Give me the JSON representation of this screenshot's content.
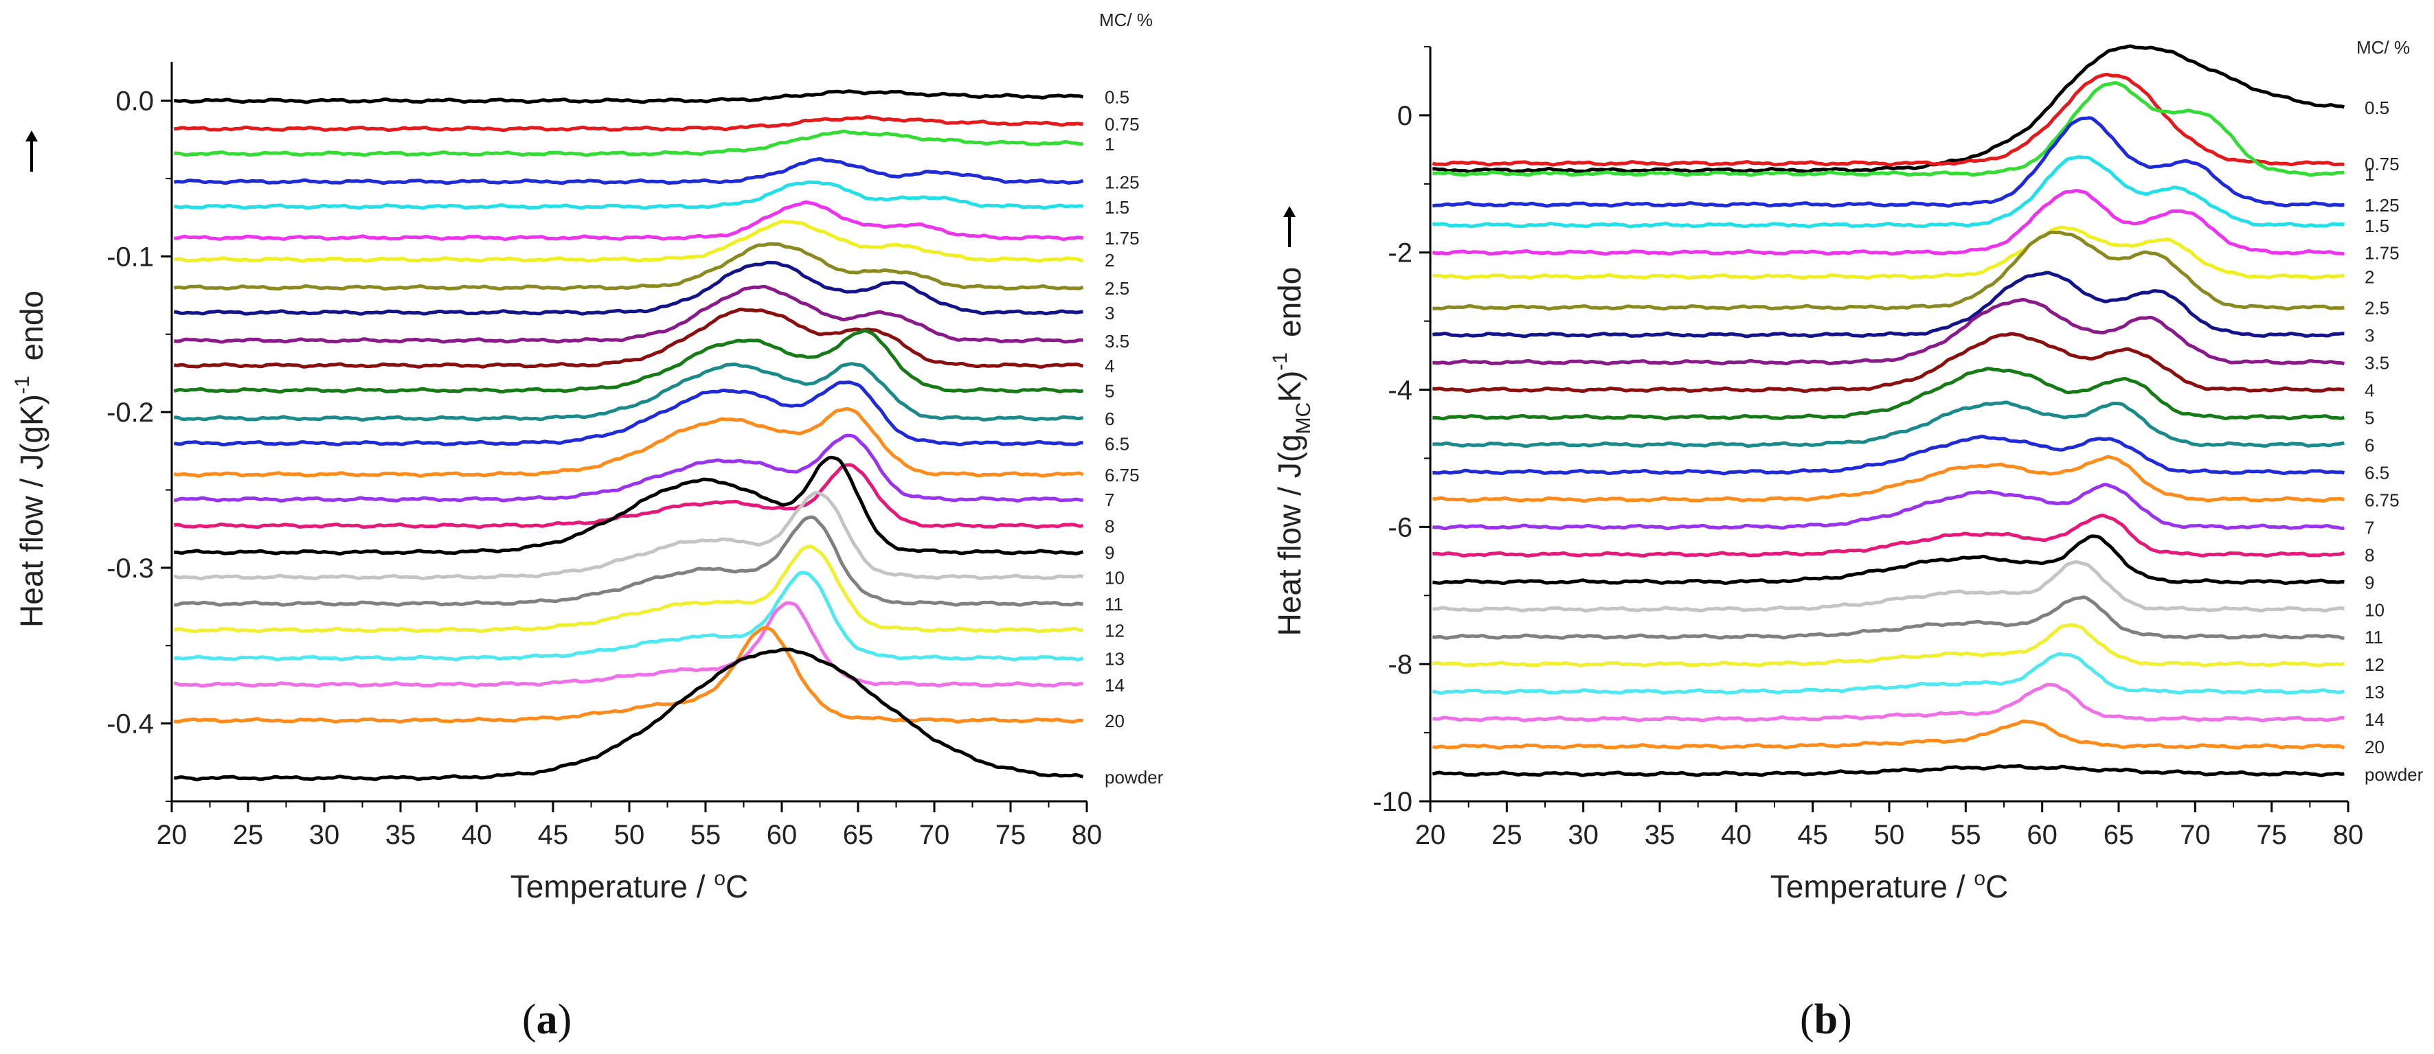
{
  "figure": {
    "panels": [
      "a",
      "b"
    ]
  },
  "chart_data": [
    {
      "type": "line",
      "panel_label": "a",
      "title": "",
      "xlabel": "Temperature / °C",
      "ylabel": "Heat flow / J(gK)-1  endo",
      "ylabel_parts": {
        "main": "Heat flow / J(gK)",
        "sup": "-1",
        "endo": "endo"
      },
      "xlabel_parts": {
        "main": "Temperature / ",
        "sup": "o",
        "unit": "C"
      },
      "xlim": [
        20,
        80
      ],
      "ylim": [
        -0.45,
        0.025
      ],
      "xticks": [
        20,
        25,
        30,
        35,
        40,
        45,
        50,
        55,
        60,
        65,
        70,
        75,
        80
      ],
      "yticks": [
        0.0,
        -0.1,
        -0.2,
        -0.3,
        -0.4
      ],
      "ytick_labels": [
        "0.0",
        "-0.1",
        "-0.2",
        "-0.3",
        "-0.4"
      ],
      "legend_title": "MC/ %",
      "grid": false,
      "series": [
        {
          "name": "0.5",
          "color": "#000000",
          "baseline": 0.0,
          "peaks": [
            [
              64.5,
              0.005,
              3.0,
              "step"
            ]
          ]
        },
        {
          "name": "0.75",
          "color": "#e41a1c",
          "baseline": -0.018,
          "peaks": [
            [
              64.5,
              0.006,
              3.0,
              "step"
            ]
          ]
        },
        {
          "name": "1",
          "color": "#33dd33",
          "baseline": -0.034,
          "peaks": [
            [
              64.0,
              0.012,
              3.0,
              "step"
            ]
          ]
        },
        {
          "name": "1.25",
          "color": "#1f2bd6",
          "baseline": -0.052,
          "peaks": [
            [
              62.8,
              0.014,
              2.4
            ],
            [
              70.5,
              0.006,
              2.0
            ]
          ]
        },
        {
          "name": "1.5",
          "color": "#22e0e8",
          "baseline": -0.068,
          "peaks": [
            [
              62.0,
              0.016,
              2.4
            ],
            [
              69.5,
              0.006,
              2.0
            ]
          ]
        },
        {
          "name": "1.75",
          "color": "#ee33ee",
          "baseline": -0.088,
          "peaks": [
            [
              61.5,
              0.022,
              2.4
            ],
            [
              68.5,
              0.008,
              2.0
            ]
          ]
        },
        {
          "name": "2",
          "color": "#f0f020",
          "baseline": -0.102,
          "peaks": [
            [
              60.5,
              0.024,
              2.8
            ],
            [
              68.0,
              0.008,
              2.0
            ]
          ]
        },
        {
          "name": "2.5",
          "color": "#8a8a20",
          "baseline": -0.12,
          "peaks": [
            [
              59.5,
              0.028,
              3.0
            ],
            [
              67.5,
              0.01,
              2.0
            ]
          ]
        },
        {
          "name": "3",
          "color": "#14148a",
          "baseline": -0.136,
          "peaks": [
            [
              59.0,
              0.032,
              3.2
            ],
            [
              67.5,
              0.018,
              2.0
            ]
          ]
        },
        {
          "name": "3.5",
          "color": "#8a1a8a",
          "baseline": -0.154,
          "peaks": [
            [
              58.5,
              0.034,
              3.4
            ],
            [
              67.0,
              0.016,
              2.0
            ]
          ]
        },
        {
          "name": "4",
          "color": "#8a1010",
          "baseline": -0.17,
          "peaks": [
            [
              58.0,
              0.036,
              3.6
            ],
            [
              66.0,
              0.02,
              2.0
            ]
          ]
        },
        {
          "name": "5",
          "color": "#167a16",
          "baseline": -0.186,
          "peaks": [
            [
              57.5,
              0.032,
              3.8
            ],
            [
              65.5,
              0.034,
              1.8
            ]
          ]
        },
        {
          "name": "6",
          "color": "#1a8a8a",
          "baseline": -0.204,
          "peaks": [
            [
              57.0,
              0.034,
              4.0
            ],
            [
              65.0,
              0.03,
              1.8
            ]
          ]
        },
        {
          "name": "6.5",
          "color": "#1f2bd6",
          "baseline": -0.22,
          "peaks": [
            [
              56.5,
              0.034,
              4.2
            ],
            [
              64.5,
              0.034,
              1.8
            ]
          ]
        },
        {
          "name": "6.75",
          "color": "#ff8c1a",
          "baseline": -0.24,
          "peaks": [
            [
              56.5,
              0.035,
              4.5
            ],
            [
              64.5,
              0.034,
              1.8
            ]
          ]
        },
        {
          "name": "7",
          "color": "#9933ee",
          "baseline": -0.256,
          "peaks": [
            [
              56.5,
              0.025,
              4.5
            ],
            [
              64.5,
              0.036,
              1.6
            ]
          ]
        },
        {
          "name": "8",
          "color": "#e6197a",
          "baseline": -0.273,
          "peaks": [
            [
              56.0,
              0.015,
              4.5
            ],
            [
              64.5,
              0.036,
              1.6
            ]
          ]
        },
        {
          "name": "9",
          "color": "#000000",
          "baseline": -0.29,
          "peaks": [
            [
              55.0,
              0.046,
              5.0
            ],
            [
              63.5,
              0.05,
              1.5
            ]
          ]
        },
        {
          "name": "10",
          "color": "#c4c4c4",
          "baseline": -0.306,
          "peaks": [
            [
              55.5,
              0.024,
              4.8
            ],
            [
              62.5,
              0.046,
              1.6
            ]
          ]
        },
        {
          "name": "11",
          "color": "#808080",
          "baseline": -0.323,
          "peaks": [
            [
              55.5,
              0.022,
              4.8
            ],
            [
              62.0,
              0.046,
              1.6
            ]
          ]
        },
        {
          "name": "12",
          "color": "#f0f030",
          "baseline": -0.34,
          "peaks": [
            [
              55.5,
              0.018,
              5.0
            ],
            [
              62.0,
              0.046,
              1.6
            ]
          ]
        },
        {
          "name": "13",
          "color": "#4de8f0",
          "baseline": -0.358,
          "peaks": [
            [
              55.5,
              0.014,
              5.0
            ],
            [
              61.5,
              0.048,
              1.6
            ]
          ]
        },
        {
          "name": "14",
          "color": "#f070e8",
          "baseline": -0.375,
          "peaks": [
            [
              55.5,
              0.01,
              5.0
            ],
            [
              60.5,
              0.046,
              1.6
            ]
          ]
        },
        {
          "name": "20",
          "color": "#ff8c1a",
          "baseline": -0.398,
          "peaks": [
            [
              55.0,
              0.012,
              5.0
            ],
            [
              59.0,
              0.05,
              1.8
            ]
          ]
        },
        {
          "name": "powder",
          "color": "#000000",
          "baseline": -0.435,
          "peaks": [
            [
              60.0,
              0.082,
              6.5
            ]
          ]
        }
      ]
    },
    {
      "type": "line",
      "panel_label": "b",
      "title": "",
      "xlabel": "Temperature / °C",
      "ylabel": "Heat flow / J(gMCK)-1  endo",
      "ylabel_parts": {
        "main": "Heat flow / J(g",
        "sub": "MC",
        "mid": "K)",
        "sup": "-1",
        "endo": "endo"
      },
      "xlabel_parts": {
        "main": "Temperature / ",
        "sup": "o",
        "unit": "C"
      },
      "xlim": [
        20,
        80
      ],
      "ylim": [
        -10,
        1
      ],
      "xticks": [
        20,
        25,
        30,
        35,
        40,
        45,
        50,
        55,
        60,
        65,
        70,
        75,
        80
      ],
      "yticks": [
        0,
        -2,
        -4,
        -6,
        -8,
        -10
      ],
      "ytick_labels": [
        "0",
        "-2",
        "-4",
        "-6",
        "-8",
        "-10"
      ],
      "legend_title": "MC/ %",
      "grid": false,
      "series": [
        {
          "name": "0.5",
          "color": "#000000",
          "baseline": -0.8,
          "peaks": [
            [
              65.5,
              1.6,
              4.0,
              "step"
            ]
          ]
        },
        {
          "name": "0.75",
          "color": "#e41a1c",
          "baseline": -0.7,
          "peaks": [
            [
              64.5,
              1.3,
              3.2
            ]
          ]
        },
        {
          "name": "1",
          "color": "#33dd33",
          "baseline": -0.85,
          "peaks": [
            [
              64.5,
              1.3,
              2.6
            ],
            [
              70.5,
              0.8,
              2.0
            ]
          ]
        },
        {
          "name": "1.25",
          "color": "#1f2bd6",
          "baseline": -1.3,
          "peaks": [
            [
              62.8,
              1.25,
              2.4
            ],
            [
              69.5,
              0.6,
              2.0
            ]
          ]
        },
        {
          "name": "1.5",
          "color": "#22e0e8",
          "baseline": -1.6,
          "peaks": [
            [
              62.5,
              1.0,
              2.4
            ],
            [
              69.0,
              0.5,
              2.0
            ]
          ]
        },
        {
          "name": "1.75",
          "color": "#ee33ee",
          "baseline": -2.0,
          "peaks": [
            [
              62.0,
              0.9,
              2.4
            ],
            [
              69.0,
              0.6,
              2.0
            ]
          ]
        },
        {
          "name": "2",
          "color": "#f0f020",
          "baseline": -2.35,
          "peaks": [
            [
              61.5,
              0.7,
              2.6
            ],
            [
              68.0,
              0.5,
              2.0
            ]
          ]
        },
        {
          "name": "2.5",
          "color": "#8a8a20",
          "baseline": -2.8,
          "peaks": [
            [
              61.0,
              1.1,
              2.8
            ],
            [
              67.5,
              0.7,
              2.0
            ]
          ]
        },
        {
          "name": "3",
          "color": "#14148a",
          "baseline": -3.2,
          "peaks": [
            [
              60.0,
              0.9,
              3.0
            ],
            [
              67.5,
              0.6,
              2.0
            ]
          ]
        },
        {
          "name": "3.5",
          "color": "#8a1a8a",
          "baseline": -3.6,
          "peaks": [
            [
              58.5,
              0.9,
              3.4
            ],
            [
              67.0,
              0.6,
              2.0
            ]
          ]
        },
        {
          "name": "4",
          "color": "#8a1010",
          "baseline": -4.0,
          "peaks": [
            [
              58.0,
              0.8,
              3.6
            ],
            [
              66.0,
              0.5,
              2.0
            ]
          ]
        },
        {
          "name": "5",
          "color": "#167a16",
          "baseline": -4.4,
          "peaks": [
            [
              57.0,
              0.7,
              3.8
            ],
            [
              65.5,
              0.5,
              1.8
            ]
          ]
        },
        {
          "name": "6",
          "color": "#1a8a8a",
          "baseline": -4.8,
          "peaks": [
            [
              57.0,
              0.6,
              4.0
            ],
            [
              65.0,
              0.5,
              1.8
            ]
          ]
        },
        {
          "name": "6.5",
          "color": "#1f2bd6",
          "baseline": -5.2,
          "peaks": [
            [
              56.5,
              0.5,
              4.2
            ],
            [
              64.5,
              0.4,
              1.8
            ]
          ]
        },
        {
          "name": "6.75",
          "color": "#ff8c1a",
          "baseline": -5.6,
          "peaks": [
            [
              56.5,
              0.5,
              4.5
            ],
            [
              64.5,
              0.5,
              1.8
            ]
          ]
        },
        {
          "name": "7",
          "color": "#9933ee",
          "baseline": -6.0,
          "peaks": [
            [
              56.5,
              0.5,
              4.5
            ],
            [
              64.5,
              0.5,
              1.6
            ]
          ]
        },
        {
          "name": "8",
          "color": "#e6197a",
          "baseline": -6.4,
          "peaks": [
            [
              56.0,
              0.3,
              4.5
            ],
            [
              64.0,
              0.5,
              1.6
            ]
          ]
        },
        {
          "name": "9",
          "color": "#000000",
          "baseline": -6.8,
          "peaks": [
            [
              55.5,
              0.35,
              5.0
            ],
            [
              63.5,
              0.55,
              1.5
            ]
          ]
        },
        {
          "name": "10",
          "color": "#c4c4c4",
          "baseline": -7.2,
          "peaks": [
            [
              55.5,
              0.25,
              4.8
            ],
            [
              62.5,
              0.6,
              1.6
            ]
          ]
        },
        {
          "name": "11",
          "color": "#808080",
          "baseline": -7.6,
          "peaks": [
            [
              55.5,
              0.2,
              4.8
            ],
            [
              62.5,
              0.5,
              1.6
            ]
          ]
        },
        {
          "name": "12",
          "color": "#f0f030",
          "baseline": -8.0,
          "peaks": [
            [
              55.5,
              0.15,
              5.0
            ],
            [
              62.0,
              0.5,
              1.6
            ]
          ]
        },
        {
          "name": "13",
          "color": "#4de8f0",
          "baseline": -8.4,
          "peaks": [
            [
              55.5,
              0.12,
              5.0
            ],
            [
              61.5,
              0.5,
              1.6
            ]
          ]
        },
        {
          "name": "14",
          "color": "#f070e8",
          "baseline": -8.8,
          "peaks": [
            [
              55.5,
              0.08,
              5.0
            ],
            [
              60.5,
              0.45,
              1.6
            ]
          ]
        },
        {
          "name": "20",
          "color": "#ff8c1a",
          "baseline": -9.2,
          "peaks": [
            [
              55.0,
              0.08,
              5.0
            ],
            [
              59.0,
              0.3,
              1.8
            ]
          ]
        },
        {
          "name": "powder",
          "color": "#000000",
          "baseline": -9.6,
          "peaks": [
            [
              58.0,
              0.1,
              6.0
            ]
          ]
        }
      ]
    }
  ]
}
